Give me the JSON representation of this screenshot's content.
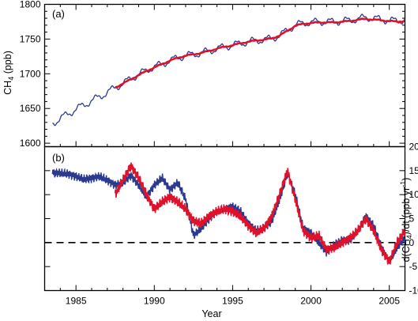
{
  "chart_data": [
    {
      "type": "line",
      "panel_label": "(a)",
      "ylabel": "CH4 (ppb)",
      "ylabel_parts": {
        "pre": "CH",
        "sub": "4",
        "post": " (ppb)"
      },
      "xlim": [
        1983.0,
        2006.0
      ],
      "ylim": [
        1595,
        1800
      ],
      "yticks": [
        1600,
        1650,
        1700,
        1750,
        1800
      ],
      "colors": {
        "observed": "#2b3a8f",
        "trend": "#e0112b"
      },
      "observed": {
        "x": [
          1983.5,
          1984.0,
          1984.5,
          1985.0,
          1985.5,
          1986.0,
          1986.5,
          1987.0,
          1987.5,
          1988.0,
          1988.5,
          1989.0,
          1989.5,
          1990.0,
          1990.5,
          1991.0,
          1991.5,
          1992.0,
          1992.5,
          1993.0,
          1993.5,
          1994.0,
          1994.5,
          1995.0,
          1995.5,
          1996.0,
          1996.5,
          1997.0,
          1997.5,
          1998.0,
          1998.5,
          1999.0,
          1999.5,
          2000.0,
          2000.5,
          2001.0,
          2001.5,
          2002.0,
          2002.5,
          2003.0,
          2003.5,
          2004.0,
          2004.5,
          2005.0,
          2005.5,
          2006.0
        ],
        "y": [
          1628,
          1636,
          1642,
          1649,
          1655,
          1661,
          1667,
          1673,
          1680,
          1686,
          1693,
          1699,
          1705,
          1710,
          1714,
          1719,
          1723,
          1726,
          1728,
          1730,
          1733,
          1736,
          1739,
          1741,
          1744,
          1746,
          1748,
          1749,
          1751,
          1755,
          1763,
          1770,
          1773,
          1774,
          1775,
          1775,
          1775,
          1776,
          1777,
          1779,
          1781,
          1780,
          1778,
          1777,
          1776,
          1778
        ]
      },
      "trend": {
        "x": [
          1987.5,
          1988.0,
          1988.5,
          1989.0,
          1989.5,
          1990.0,
          1990.5,
          1991.0,
          1991.5,
          1992.0,
          1992.5,
          1993.0,
          1993.5,
          1994.0,
          1994.5,
          1995.0,
          1995.5,
          1996.0,
          1996.5,
          1997.0,
          1997.5,
          1998.0,
          1998.5,
          1999.0,
          1999.5,
          2000.0,
          2000.5,
          2001.0,
          2001.5,
          2002.0,
          2002.5,
          2003.0,
          2003.5,
          2004.0,
          2004.5,
          2005.0,
          2005.5,
          2006.0
        ],
        "y": [
          1680,
          1686,
          1692,
          1698,
          1704,
          1709,
          1714,
          1719,
          1723,
          1726,
          1728,
          1730,
          1733,
          1736,
          1739,
          1741,
          1744,
          1746,
          1748,
          1749,
          1751,
          1755,
          1762,
          1769,
          1772,
          1773,
          1774,
          1774,
          1774,
          1775,
          1776,
          1778,
          1779,
          1778,
          1777,
          1776,
          1775,
          1776
        ]
      }
    },
    {
      "type": "line",
      "panel_label": "(b)",
      "xlabel": "Year",
      "ylabel": "d(CH4)/dt (ppb yr-1)",
      "ylabel_parts": {
        "a": "d(CH",
        "sub": "4",
        "b": ")/dt (ppb yr",
        "sup": "-1",
        "c": ")"
      },
      "xlim": [
        1983.0,
        2006.0
      ],
      "xticks": [
        1985,
        1990,
        1995,
        2000,
        2005
      ],
      "ylim": [
        -10,
        20
      ],
      "yticks": [
        -10,
        -5,
        0,
        5,
        10,
        15,
        20
      ],
      "zero_line": "dashed",
      "colors": {
        "blue": "#2b3a8f",
        "red": "#e0112b",
        "zero": "#000000"
      },
      "series": [
        {
          "x": [
            1983.5,
            1984.0,
            1984.5,
            1985.0,
            1985.5,
            1986.0,
            1986.5,
            1987.0,
            1987.5,
            1988.0,
            1988.5,
            1989.0,
            1989.5,
            1990.0,
            1990.5,
            1991.0,
            1991.5,
            1992.0,
            1992.5,
            1993.0,
            1993.5,
            1994.0,
            1994.5,
            1995.0,
            1995.5,
            1996.0,
            1996.5,
            1997.0,
            1997.5,
            1998.0,
            1998.5,
            1999.0,
            1999.5,
            2000.0,
            2000.5,
            2001.0,
            2001.5,
            2002.0,
            2002.5,
            2003.0,
            2003.5,
            2004.0,
            2004.5,
            2005.0,
            2005.5,
            2006.0
          ],
          "y": [
            14.5,
            14.5,
            14.3,
            13.8,
            13.2,
            13.4,
            13.8,
            13.0,
            12.0,
            12.5,
            14.0,
            12.0,
            9.5,
            12.0,
            13.5,
            11.0,
            12.5,
            9.0,
            1.5,
            3.0,
            5.0,
            6.5,
            7.0,
            7.5,
            6.5,
            4.0,
            2.5,
            3.0,
            4.5,
            9.0,
            14.5,
            10.0,
            3.0,
            2.0,
            0.0,
            -2.0,
            -0.5,
            0.5,
            0.5,
            2.5,
            5.5,
            3.5,
            -1.0,
            -4.0,
            -1.0,
            1.0
          ]
        },
        {
          "x": [
            1987.5,
            1988.0,
            1988.5,
            1989.0,
            1989.5,
            1990.0,
            1990.5,
            1991.0,
            1991.5,
            1992.0,
            1992.5,
            1993.0,
            1993.5,
            1994.0,
            1994.5,
            1995.0,
            1995.5,
            1996.0,
            1996.5,
            1997.0,
            1997.5,
            1998.0,
            1998.5,
            1999.0,
            1999.5,
            2000.0,
            2000.5,
            2001.0,
            2001.5,
            2002.0,
            2002.5,
            2003.0,
            2003.5,
            2004.0,
            2004.5,
            2005.0,
            2005.5,
            2006.0
          ],
          "y": [
            10.0,
            13.0,
            16.0,
            13.5,
            10.0,
            7.0,
            8.5,
            9.5,
            8.5,
            7.0,
            4.5,
            4.0,
            5.5,
            6.5,
            7.0,
            6.5,
            5.5,
            3.5,
            2.0,
            3.0,
            5.5,
            10.0,
            15.0,
            9.0,
            2.5,
            1.0,
            1.5,
            -1.5,
            -1.0,
            0.0,
            1.0,
            2.5,
            5.0,
            2.5,
            -1.5,
            -4.0,
            0.0,
            2.5
          ]
        }
      ]
    }
  ]
}
